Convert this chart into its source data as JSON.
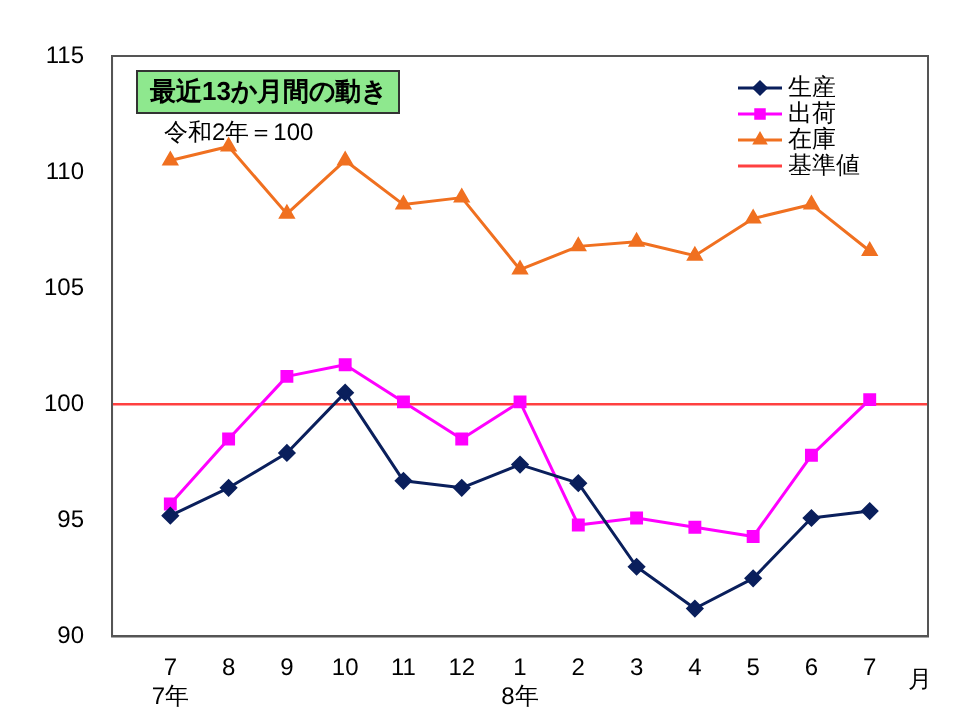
{
  "chart_data": {
    "type": "line",
    "title": "最近13か月間の動き",
    "subtitle": "令和2年＝100",
    "xlabel": "月",
    "categories": [
      null,
      "7\n7年",
      "8",
      "9",
      "10",
      "11",
      "12",
      "1\n8年",
      "2",
      "3",
      "4",
      "5",
      "6",
      "7",
      null
    ],
    "series": [
      {
        "name": "生産",
        "color": "#0a1f5c",
        "marker": "diamond",
        "values": [
          null,
          95.2,
          96.4,
          97.9,
          100.5,
          96.7,
          96.4,
          97.4,
          96.6,
          93.0,
          91.2,
          92.5,
          95.1,
          95.4,
          null
        ]
      },
      {
        "name": "出荷",
        "color": "#ff00ff",
        "marker": "square",
        "values": [
          null,
          95.7,
          98.5,
          101.2,
          101.7,
          100.1,
          98.5,
          100.1,
          94.8,
          95.1,
          94.7,
          94.3,
          97.8,
          100.2,
          null
        ]
      },
      {
        "name": "在庫",
        "color": "#f07020",
        "marker": "triangle",
        "values": [
          null,
          110.5,
          111.1,
          108.2,
          110.5,
          108.6,
          108.9,
          105.8,
          106.8,
          107.0,
          106.4,
          108.0,
          108.6,
          106.6,
          null
        ]
      }
    ],
    "ref_lines": [
      {
        "axis": "y",
        "value": 100,
        "label": "基準値",
        "color": "#ff4040"
      }
    ],
    "ylim": [
      90,
      115
    ],
    "yticks": [
      90,
      95,
      100,
      105,
      110,
      115
    ],
    "grid": false,
    "legend": "top right",
    "line_style": "solid"
  }
}
